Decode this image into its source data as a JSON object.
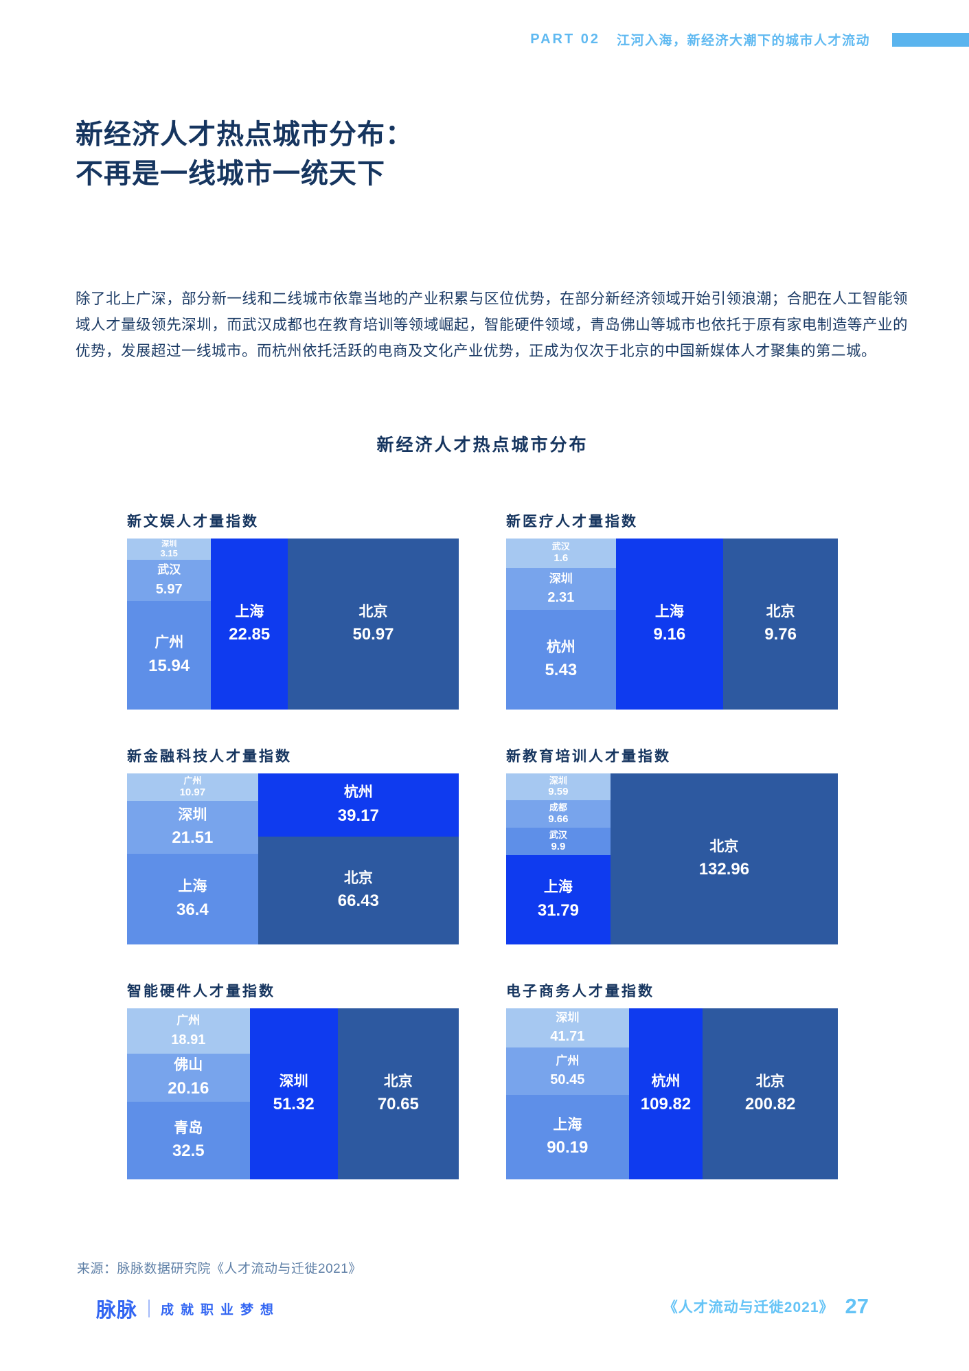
{
  "header": {
    "part": "PART 02",
    "chapter": "江河入海，新经济大潮下的城市人才流动"
  },
  "title": {
    "line1": "新经济人才热点城市分布：",
    "line2": "不再是一线城市一统天下"
  },
  "intro": "除了北上广深，部分新一线和二线城市依靠当地的产业积累与区位优势，在部分新经济领域开始引领浪潮；合肥在人工智能领域人才量级领先深圳，而武汉成都也在教育培训等领域崛起，智能硬件领域，青岛佛山等城市也依托于原有家电制造等产业的优势，发展超过一线城市。而杭州依托活跃的电商及文化产业优势，正成为仅次于北京的中国新媒体人才聚集的第二城。",
  "section_title": "新经济人才热点城市分布",
  "source": "来源：脉脉数据研究院《人才流动与迁徙2021》",
  "footer": {
    "logo": "脉脉",
    "slogan": "成就职业梦想",
    "book": "《人才流动与迁徙2021》",
    "page": "27"
  },
  "colors": {
    "header_blue": "#5fb9f1",
    "navy": "#16355f",
    "footer_blue": "#3366f2",
    "footer_light_blue": "#64c3f6",
    "cell_light1": "#a6c8f1",
    "cell_light2": "#78a4ec",
    "cell_light3": "#5e8fe8",
    "cell_accent": "#0f3bef",
    "cell_dark": "#2d59a0"
  },
  "chart_data": [
    {
      "type": "treemap",
      "title": "新文娱人才量指数",
      "columns": [
        {
          "cells": [
            {
              "city": "深圳",
              "value": 3.15,
              "shade": "light1"
            },
            {
              "city": "武汉",
              "value": 5.97,
              "shade": "light2"
            },
            {
              "city": "广州",
              "value": 15.94,
              "shade": "light3"
            }
          ]
        },
        {
          "cells": [
            {
              "city": "上海",
              "value": 22.85,
              "shade": "accent"
            }
          ]
        },
        {
          "cells": [
            {
              "city": "北京",
              "value": 50.97,
              "shade": "dark"
            }
          ]
        }
      ]
    },
    {
      "type": "treemap",
      "title": "新医疗人才量指数",
      "columns": [
        {
          "cells": [
            {
              "city": "武汉",
              "value": 1.6,
              "shade": "light1"
            },
            {
              "city": "深圳",
              "value": 2.31,
              "shade": "light2"
            },
            {
              "city": "杭州",
              "value": 5.43,
              "shade": "light3"
            }
          ]
        },
        {
          "cells": [
            {
              "city": "上海",
              "value": 9.16,
              "shade": "accent"
            }
          ]
        },
        {
          "cells": [
            {
              "city": "北京",
              "value": 9.76,
              "shade": "dark"
            }
          ]
        }
      ]
    },
    {
      "type": "treemap",
      "title": "新金融科技人才量指数",
      "columns": [
        {
          "cells": [
            {
              "city": "广州",
              "value": 10.97,
              "shade": "light1"
            },
            {
              "city": "深圳",
              "value": 21.51,
              "shade": "light2"
            },
            {
              "city": "上海",
              "value": 36.4,
              "shade": "light3"
            }
          ]
        },
        {
          "cells": [
            {
              "city": "杭州",
              "value": 39.17,
              "shade": "accent"
            },
            {
              "city": "北京",
              "value": 66.43,
              "shade": "dark"
            }
          ]
        }
      ]
    },
    {
      "type": "treemap",
      "title": "新教育培训人才量指数",
      "columns": [
        {
          "cells": [
            {
              "city": "深圳",
              "value": 9.59,
              "shade": "light1"
            },
            {
              "city": "成都",
              "value": 9.66,
              "shade": "light2"
            },
            {
              "city": "武汉",
              "value": 9.9,
              "shade": "light3"
            },
            {
              "city": "上海",
              "value": 31.79,
              "shade": "accent"
            }
          ]
        },
        {
          "cells": [
            {
              "city": "北京",
              "value": 132.96,
              "shade": "dark"
            }
          ]
        }
      ]
    },
    {
      "type": "treemap",
      "title": "智能硬件人才量指数",
      "columns": [
        {
          "cells": [
            {
              "city": "广州",
              "value": 18.91,
              "shade": "light1"
            },
            {
              "city": "佛山",
              "value": 20.16,
              "shade": "light2"
            },
            {
              "city": "青岛",
              "value": 32.5,
              "shade": "light3"
            }
          ]
        },
        {
          "cells": [
            {
              "city": "深圳",
              "value": 51.32,
              "shade": "accent"
            }
          ]
        },
        {
          "cells": [
            {
              "city": "北京",
              "value": 70.65,
              "shade": "dark"
            }
          ]
        }
      ]
    },
    {
      "type": "treemap",
      "title": "电子商务人才量指数",
      "columns": [
        {
          "cells": [
            {
              "city": "深圳",
              "value": 41.71,
              "shade": "light1"
            },
            {
              "city": "广州",
              "value": 50.45,
              "shade": "light2"
            },
            {
              "city": "上海",
              "value": 90.19,
              "shade": "light3"
            }
          ]
        },
        {
          "cells": [
            {
              "city": "杭州",
              "value": 109.82,
              "shade": "accent"
            }
          ]
        },
        {
          "cells": [
            {
              "city": "北京",
              "value": 200.82,
              "shade": "dark"
            }
          ]
        }
      ]
    }
  ]
}
